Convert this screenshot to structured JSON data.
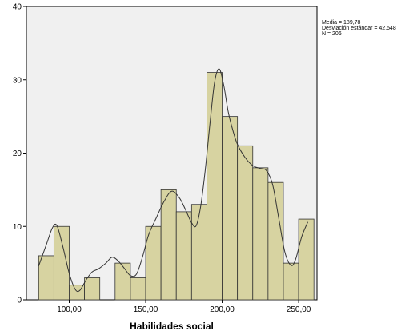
{
  "chart_data": {
    "type": "bar",
    "title": "",
    "xlabel": "Habilidades social",
    "ylabel": "",
    "xlim": [
      72,
      262
    ],
    "ylim": [
      0,
      40
    ],
    "x_ticks": [
      100,
      150,
      200,
      250
    ],
    "x_tick_labels": [
      "100,00",
      "150,00",
      "200,00",
      "250,00"
    ],
    "y_ticks": [
      0,
      10,
      20,
      30,
      40
    ],
    "y_tick_labels": [
      "0",
      "10",
      "20",
      "30",
      "40"
    ],
    "bin_width": 10,
    "bin_starts": [
      80,
      90,
      100,
      110,
      120,
      130,
      140,
      150,
      160,
      170,
      180,
      190,
      200,
      210,
      220,
      230,
      240,
      250
    ],
    "values": [
      6,
      10,
      2,
      3,
      0,
      5,
      3,
      10,
      15,
      12,
      13,
      31,
      25,
      21,
      18,
      16,
      5,
      11
    ],
    "grid": false,
    "bar_color": "#d7d3a1",
    "plot_background": "#f0f0f0",
    "density_curve": {
      "x": [
        80,
        85,
        89,
        92,
        96,
        100,
        104,
        107,
        111,
        115,
        119,
        124,
        128,
        132,
        136,
        140,
        144,
        148,
        152,
        157,
        162,
        167,
        172,
        176,
        180,
        183,
        186,
        189,
        192,
        195,
        198,
        201,
        204,
        207,
        210,
        215,
        220,
        225,
        229,
        233,
        237,
        241,
        245,
        248,
        252,
        256
      ],
      "y": [
        4.6,
        7.5,
        9.8,
        10.1,
        7.1,
        3.6,
        1.4,
        1.3,
        2.7,
        3.8,
        4.2,
        5.0,
        5.8,
        5.3,
        4.3,
        3.3,
        3.5,
        5.9,
        8.9,
        11.2,
        13.4,
        14.8,
        13.9,
        12.3,
        10.5,
        10.1,
        12.8,
        17.8,
        24.0,
        29.6,
        31.5,
        29.3,
        25.6,
        23.1,
        21.2,
        19.4,
        18.3,
        17.9,
        17.6,
        15.7,
        11.1,
        6.5,
        4.7,
        5.5,
        8.6,
        10.6
      ]
    },
    "stats": {
      "mean": "Media = 189,78",
      "std": "Desviación estándar = 42,548",
      "n": "N = 206"
    }
  }
}
